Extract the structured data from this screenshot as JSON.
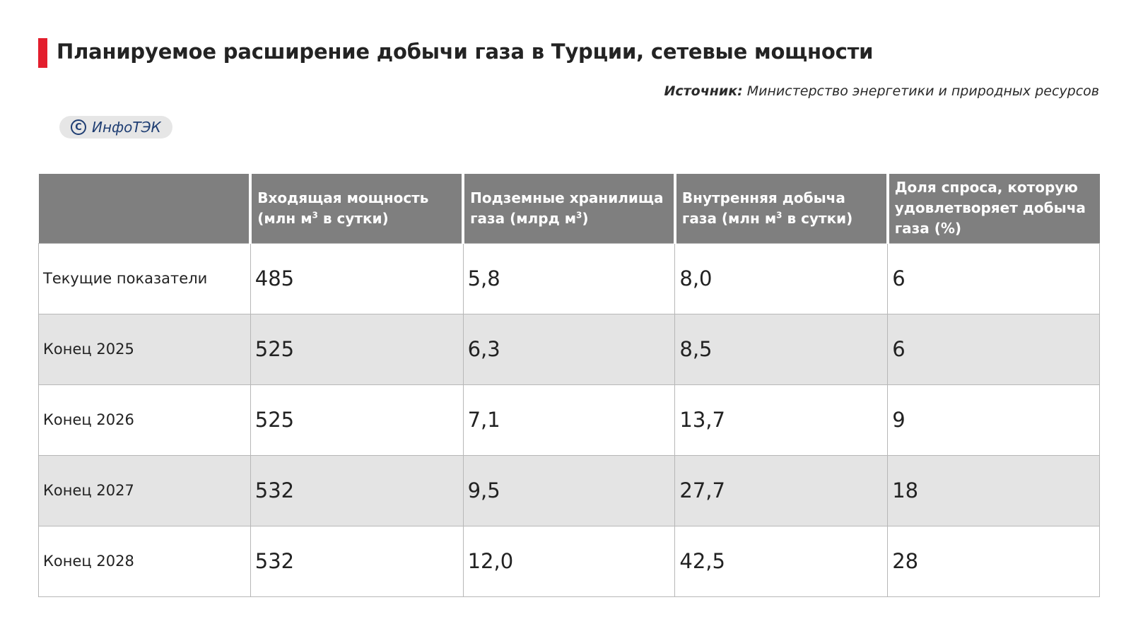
{
  "title": "Планируемое расширение добычи газа в Турции, сетевые мощности",
  "source": {
    "label": "Источник:",
    "text": "Министерство энергетики и природных ресурсов"
  },
  "badge": {
    "icon": "copyright-icon",
    "text": "ИнфоТЭК"
  },
  "colors": {
    "accent": "#e31e2d",
    "header_bg": "#7f7f7f",
    "stripe_bg": "#e4e4e4",
    "badge_text": "#1f3e73"
  },
  "chart_data": {
    "type": "table",
    "columns": [
      {
        "pre": "",
        "sup": "",
        "post": ""
      },
      {
        "pre": "Входящая мощность (млн м",
        "sup": "3",
        "post": " в сутки)"
      },
      {
        "pre": "Подземные хранилища газа (млрд м",
        "sup": "3",
        "post": ")"
      },
      {
        "pre": "Внутренняя добыча газа (млн м",
        "sup": "3",
        "post": " в сутки)"
      },
      {
        "pre": "Доля спроса, которую удовлетворяет добыча газа (%)",
        "sup": "",
        "post": ""
      }
    ],
    "rows": [
      {
        "label": "Текущие показатели",
        "values": [
          "485",
          "5,8",
          "8,0",
          "6"
        ]
      },
      {
        "label": "Конец 2025",
        "values": [
          "525",
          "6,3",
          "8,5",
          "6"
        ]
      },
      {
        "label": "Конец 2026",
        "values": [
          "525",
          "7,1",
          "13,7",
          "9"
        ]
      },
      {
        "label": "Конец 2027",
        "values": [
          "532",
          "9,5",
          "27,7",
          "18"
        ]
      },
      {
        "label": "Конец 2028",
        "values": [
          "532",
          "12,0",
          "42,5",
          "28"
        ]
      }
    ]
  }
}
